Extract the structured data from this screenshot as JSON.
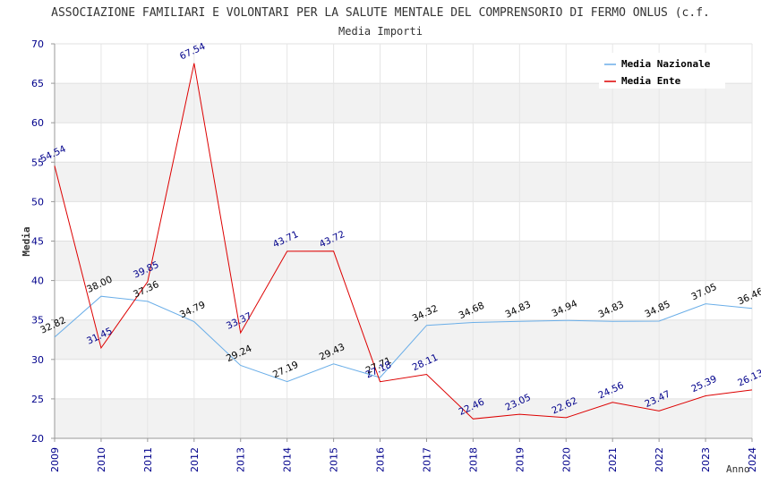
{
  "chart_data": {
    "type": "line",
    "title": "ASSOCIAZIONE FAMILIARI E VOLONTARI PER LA SALUTE MENTALE DEL COMPRENSORIO DI FERMO ONLUS (c.f.",
    "subtitle": "Media Importi",
    "xlabel": "Anno",
    "ylabel": "Media",
    "ylim": [
      20,
      70
    ],
    "yticks": [
      "20",
      "25",
      "30",
      "35",
      "40",
      "45",
      "50",
      "55",
      "60",
      "65",
      "70"
    ],
    "categories": [
      "2009",
      "2010",
      "2011",
      "2012",
      "2013",
      "2014",
      "2015",
      "2016",
      "2017",
      "2018",
      "2019",
      "2020",
      "2021",
      "2022",
      "2023",
      "2024"
    ],
    "grid": true,
    "legend_position": "top-right",
    "series": [
      {
        "name": "Media Nazionale",
        "color": "#6aaee8",
        "values": [
          32.82,
          38.0,
          37.36,
          34.79,
          29.24,
          27.19,
          29.43,
          27.71,
          34.32,
          34.68,
          34.83,
          34.94,
          34.83,
          34.85,
          37.05,
          36.46
        ],
        "labels": [
          "32.82",
          "38.00",
          "37.36",
          "34.79",
          "29.24",
          "27.19",
          "29.43",
          "27.71",
          "34.32",
          "34.68",
          "34.83",
          "34.94",
          "34.83",
          "34.85",
          "37.05",
          "36.46"
        ]
      },
      {
        "name": "Media Ente",
        "color": "#dd0000",
        "values": [
          54.54,
          31.45,
          39.85,
          67.54,
          33.37,
          43.71,
          43.72,
          27.18,
          28.11,
          22.46,
          23.05,
          22.62,
          24.56,
          23.47,
          25.39,
          26.13
        ],
        "labels": [
          "54.54",
          "31.45",
          "39.85",
          "67.54",
          "33.37",
          "43.71",
          "43.72",
          "27.18",
          "28.11",
          "22.46",
          "23.05",
          "22.62",
          "24.56",
          "23.47",
          "25.39",
          "26.13"
        ]
      }
    ]
  }
}
